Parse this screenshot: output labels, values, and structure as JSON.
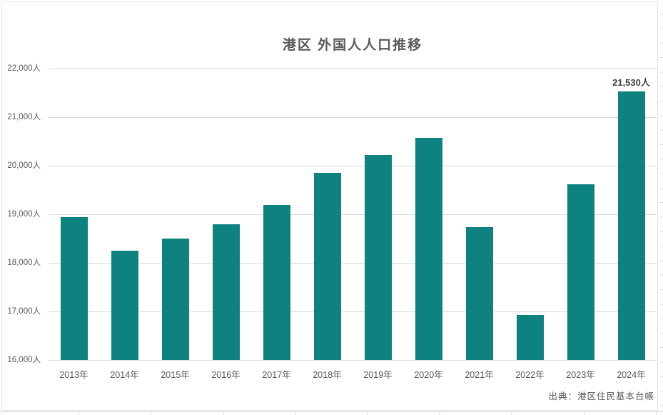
{
  "source_note": "出典：港区住民基本台帳",
  "chart_data": {
    "type": "bar",
    "title": "港区 外国人人口推移",
    "categories": [
      "2013年",
      "2014年",
      "2015年",
      "2016年",
      "2017年",
      "2018年",
      "2019年",
      "2020年",
      "2021年",
      "2022年",
      "2023年",
      "2024年"
    ],
    "values": [
      18940,
      18250,
      18500,
      18800,
      19190,
      19850,
      20220,
      20580,
      18730,
      16930,
      19620,
      21530
    ],
    "unit": "人",
    "xlabel": "",
    "ylabel": "",
    "ylim": [
      16000,
      22000
    ],
    "y_tick_step": 1000,
    "y_ticks": [
      {
        "value": 22000,
        "label": "22,000人"
      },
      {
        "value": 21000,
        "label": "21,000人"
      },
      {
        "value": 20000,
        "label": "20,000人"
      },
      {
        "value": 19000,
        "label": "19,000人"
      },
      {
        "value": 18000,
        "label": "18,000人"
      },
      {
        "value": 17000,
        "label": "17,000人"
      },
      {
        "value": 16000,
        "label": "16,000人"
      }
    ],
    "grid": true,
    "legend": false,
    "annotation": {
      "category": "2024年",
      "label": "21,530人"
    }
  },
  "colors": {
    "bar": "#0e8181",
    "gridline": "#d9d9d9",
    "title_text": "#595959",
    "axis_text": "#595959",
    "data_label": "#404040",
    "source_text": "#595959"
  }
}
